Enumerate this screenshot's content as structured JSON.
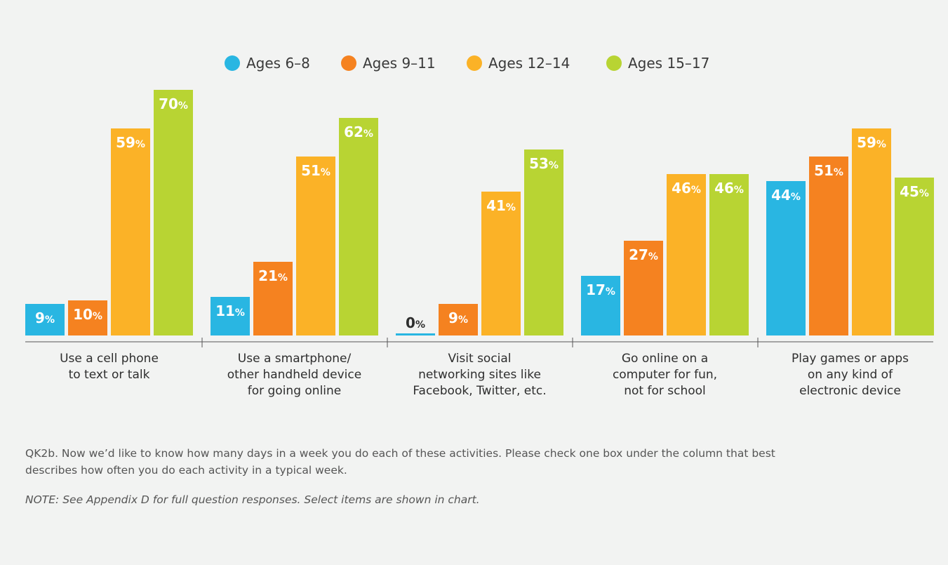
{
  "chart_data": {
    "type": "bar",
    "categories": [
      [
        "Use a cell phone",
        "to text or talk"
      ],
      [
        "Use a smartphone/",
        "other handheld device",
        "for going online"
      ],
      [
        "Visit social",
        "networking sites like",
        "Facebook, Twitter, etc."
      ],
      [
        "Go online on a",
        "computer for fun,",
        "not for school"
      ],
      [
        "Play games or apps",
        "on any kind of",
        "electronic device"
      ]
    ],
    "series": [
      {
        "name": "Ages 6–8",
        "color": "#29b6e2",
        "values": [
          9,
          11,
          0,
          17,
          44
        ]
      },
      {
        "name": "Ages 9–11",
        "color": "#f58220",
        "values": [
          10,
          21,
          9,
          27,
          51
        ]
      },
      {
        "name": "Ages 12–14",
        "color": "#fbb227",
        "values": [
          59,
          51,
          41,
          46,
          59
        ]
      },
      {
        "name": "Ages 15–17",
        "color": "#b8d433",
        "values": [
          70,
          62,
          53,
          46,
          45
        ]
      }
    ],
    "value_suffix": "%",
    "ylim": [
      0,
      70
    ],
    "legend": "top-center",
    "grid": false
  },
  "notes": {
    "question": "QK2b. Now we’d like to know how many days in a week you do each of these activities. Please check one box under the column that best describes how often you do each activity in a  typical week.",
    "note": "NOTE: See Appendix D for full question responses. Select items are shown in chart."
  }
}
